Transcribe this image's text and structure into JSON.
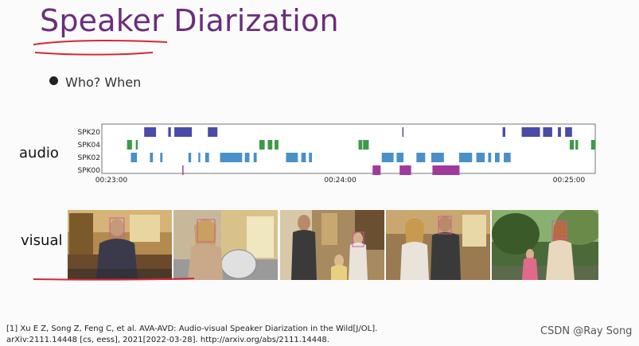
{
  "slide": {
    "title": "Speaker Diarization",
    "bullet": "Who? When",
    "audio_label": "audio",
    "visual_label": "visual",
    "citation_line1": "[1] Xu E Z, Song Z, Feng C, et al. AVA-AVD: Audio-visual Speaker Diarization in the Wild[J/OL].",
    "citation_line2": "arXiv:2111.14448 [cs, eess], 2021[2022-03-28]. http://arxiv.org/abs/2111.14448."
  },
  "watermark": "CSDN @Ray Song",
  "colors": {
    "title": "#6a2e7a",
    "annotation_red": "#d8263a",
    "face_box": "#d05a9a"
  },
  "chart_data": {
    "type": "timeline",
    "x_unit": "seconds",
    "xlim": [
      0,
      120
    ],
    "tick_labels": [
      "00:23:00",
      "00:24:00",
      "00:25:00"
    ],
    "tick_values": [
      0,
      60,
      120
    ],
    "grid": false,
    "series": [
      {
        "name": "SPK20",
        "color": "#4a4aa8",
        "segments": [
          [
            8.6,
            11.7
          ],
          [
            14.9,
            15.6
          ],
          [
            16.5,
            21.1
          ],
          [
            25.3,
            27.8
          ],
          [
            76.3,
            76.6
          ],
          [
            102.6,
            103.3
          ],
          [
            107.6,
            112.4
          ],
          [
            113.2,
            115.6
          ],
          [
            117.1,
            117.9
          ],
          [
            119.0,
            120.8
          ]
        ]
      },
      {
        "name": "SPK04",
        "color": "#3f9a48",
        "segments": [
          [
            4.1,
            5.4
          ],
          [
            6.4,
            6.9
          ],
          [
            38.8,
            40.2
          ],
          [
            41.0,
            42.2
          ],
          [
            42.8,
            43.8
          ],
          [
            64.8,
            65.8
          ],
          [
            66.0,
            67.5
          ],
          [
            120.2,
            121.3
          ],
          [
            121.7,
            122.4
          ],
          [
            125.8,
            127.0
          ]
        ]
      },
      {
        "name": "SPK02",
        "color": "#4a90c8",
        "segments": [
          [
            5.1,
            6.7
          ],
          [
            10.1,
            10.9
          ],
          [
            12.8,
            13.4
          ],
          [
            20.2,
            20.9
          ],
          [
            22.8,
            23.3
          ],
          [
            24.6,
            25.6
          ],
          [
            28.5,
            34.3
          ],
          [
            35.0,
            36.2
          ],
          [
            37.3,
            38.1
          ],
          [
            45.8,
            48.9
          ],
          [
            49.8,
            51.0
          ],
          [
            51.8,
            52.6
          ],
          [
            70.9,
            74.0
          ],
          [
            74.8,
            76.6
          ],
          [
            80.0,
            82.3
          ],
          [
            83.9,
            87.2
          ],
          [
            91.2,
            94.6
          ],
          [
            95.7,
            97.9
          ],
          [
            98.8,
            99.6
          ],
          [
            100.6,
            101.8
          ],
          [
            102.9,
            104.7
          ]
        ]
      },
      {
        "name": "SPK00",
        "color": "#a0399a",
        "segments": [
          [
            18.6,
            18.9
          ],
          [
            68.5,
            70.6
          ],
          [
            75.6,
            78.6
          ],
          [
            84.2,
            91.3
          ]
        ]
      }
    ]
  },
  "frames": [
    {
      "name": "frame-1"
    },
    {
      "name": "frame-2"
    },
    {
      "name": "frame-3"
    },
    {
      "name": "frame-4"
    },
    {
      "name": "frame-5"
    }
  ]
}
